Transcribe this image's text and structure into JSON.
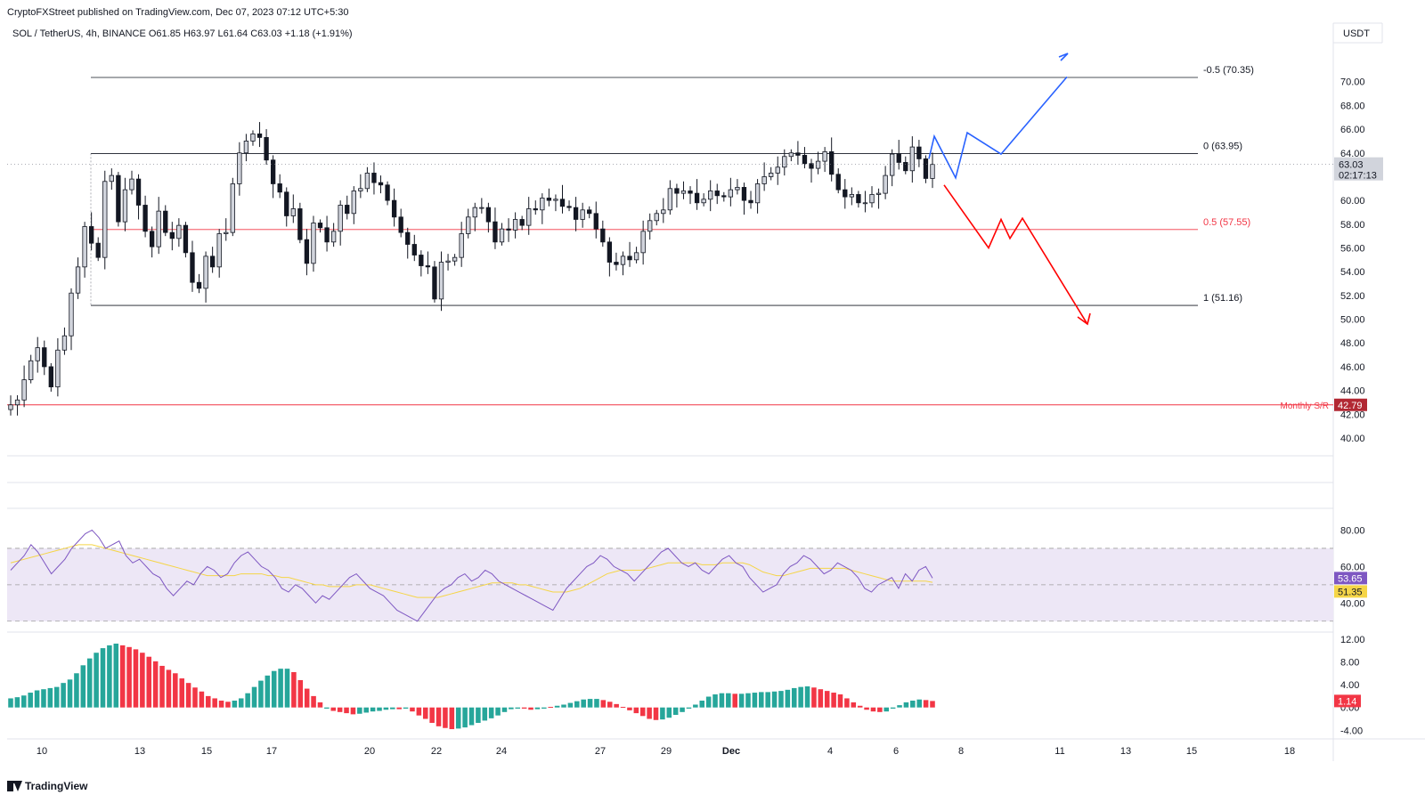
{
  "header": {
    "publisher_line": "CryptoFXStreet published on TradingView.com, Dec 07, 2023 07:12 UTC+5:30",
    "symbol_line": "SOL / TetherUS, 4h, BINANCE  O61.85  H63.97  L61.64  C63.03  +1.18 (+1.91%)"
  },
  "footer": {
    "brand": "TradingView"
  },
  "colors": {
    "bull": "#d1d4dc",
    "bear": "#131722",
    "fib_line": "#131722",
    "fib_mid": "#f23645",
    "support": "#f23645",
    "bullish_path": "#2962ff",
    "bearish_path": "#ff0000",
    "rsi": "#7e57c2",
    "rsi_ma": "#f5d547",
    "rsi_band": "#ede7f6",
    "hist_up": "#26a69a",
    "hist_down": "#f23645"
  },
  "chart_data": [
    {
      "type": "candlestick",
      "title": "SOL / TetherUS, 4h, BINANCE",
      "currency": "USDT",
      "ylim": [
        38.5,
        73.2
      ],
      "price_ticks": [
        "40.00",
        "42.00",
        "44.00",
        "46.00",
        "48.00",
        "50.00",
        "52.00",
        "54.00",
        "56.00",
        "58.00",
        "60.00",
        "62.00",
        "64.00",
        "66.00",
        "68.00",
        "70.00"
      ],
      "x_ticks": [
        "10",
        "13",
        "15",
        "17",
        "20",
        "22",
        "24",
        "27",
        "29",
        "Dec",
        "4",
        "6",
        "8",
        "11",
        "13",
        "15",
        "18"
      ],
      "closes": [
        42.79,
        43.2,
        44.9,
        46.5,
        47.6,
        46.0,
        44.3,
        47.4,
        48.6,
        52.2,
        54.4,
        57.8,
        56.4,
        55.2,
        61.6,
        62.1,
        58.2,
        60.9,
        61.8,
        59.6,
        57.4,
        56.1,
        59.1,
        57.3,
        56.8,
        57.9,
        55.6,
        53.1,
        52.6,
        55.3,
        54.4,
        57.2,
        57.3,
        61.4,
        64.0,
        65.0,
        65.6,
        65.3,
        63.4,
        61.4,
        60.7,
        58.7,
        59.3,
        56.7,
        54.7,
        58.1,
        57.7,
        56.5,
        57.4,
        59.6,
        58.9,
        60.8,
        61.0,
        62.3,
        61.5,
        61.3,
        60.0,
        58.6,
        57.3,
        56.3,
        55.4,
        54.5,
        54.4,
        51.7,
        54.8,
        54.9,
        55.2,
        57.2,
        58.6,
        59.4,
        59.4,
        58.2,
        56.5,
        57.6,
        57.5,
        58.4,
        57.9,
        59.3,
        59.2,
        60.2,
        60.0,
        60.1,
        59.5,
        59.4,
        58.4,
        59.2,
        58.9,
        57.6,
        56.5,
        54.8,
        54.6,
        55.3,
        55.0,
        55.6,
        57.4,
        58.3,
        58.9,
        59.2,
        61.0,
        60.6,
        60.8,
        60.6,
        59.8,
        60.1,
        60.8,
        60.4,
        60.3,
        60.9,
        61.1,
        60.0,
        59.8,
        61.4,
        62.0,
        62.3,
        62.8,
        63.7,
        64.0,
        63.8,
        63.1,
        62.7,
        63.3,
        64.1,
        62.2,
        60.9,
        60.3,
        60.5,
        59.8,
        59.8,
        60.5,
        60.6,
        62.1,
        63.9,
        63.2,
        62.5,
        64.5,
        63.5,
        61.85,
        63.03
      ],
      "horizontal_levels": [
        {
          "label": "-0.5 (70.35)",
          "value": 70.35
        },
        {
          "label": "0 (63.95)",
          "value": 63.95
        },
        {
          "label": "0.5 (57.55)",
          "value": 57.55
        },
        {
          "label": "1 (51.16)",
          "value": 51.16
        },
        {
          "label": "Monthly S/R",
          "value": 42.79
        }
      ],
      "price_badges": [
        {
          "value": "63.03",
          "countdown": "02:17:13"
        },
        {
          "value": "42.79"
        }
      ],
      "bullish_scenario": [
        [
          63.5,
          65.3
        ],
        [
          61.9,
          64.8
        ],
        [
          64.9,
          65.7
        ],
        [
          63.4,
          64.1
        ],
        [
          70.35,
          70.35
        ]
      ],
      "bearish_scenario": [
        [
          62.0,
          61.4
        ],
        [
          56.0,
          58.5
        ],
        [
          56.8,
          58.4
        ],
        [
          49.7,
          49.7
        ]
      ]
    },
    {
      "type": "line",
      "title": "RSI",
      "ylim": [
        25,
        90
      ],
      "y_ticks": [
        "40.00",
        "60.00",
        "80.00"
      ],
      "band": [
        30,
        70
      ],
      "midline": 50,
      "values": [
        58,
        62,
        66,
        72,
        68,
        62,
        56,
        60,
        64,
        70,
        74,
        78,
        80,
        76,
        70,
        72,
        74,
        66,
        62,
        64,
        60,
        56,
        54,
        48,
        44,
        48,
        52,
        50,
        56,
        60,
        58,
        54,
        56,
        62,
        66,
        68,
        64,
        60,
        58,
        54,
        48,
        46,
        50,
        48,
        44,
        40,
        44,
        42,
        46,
        50,
        54,
        56,
        52,
        48,
        46,
        44,
        40,
        36,
        34,
        32,
        30,
        35,
        40,
        45,
        48,
        50,
        54,
        56,
        52,
        54,
        58,
        56,
        52,
        50,
        48,
        46,
        44,
        42,
        40,
        38,
        36,
        42,
        48,
        52,
        56,
        60,
        62,
        66,
        64,
        60,
        58,
        56,
        52,
        56,
        60,
        64,
        68,
        70,
        66,
        62,
        60,
        62,
        58,
        56,
        60,
        64,
        66,
        62,
        60,
        54,
        50,
        46,
        48,
        50,
        56,
        60,
        62,
        66,
        64,
        60,
        56,
        58,
        62,
        60,
        58,
        54,
        48,
        46,
        50,
        52,
        54,
        48,
        56,
        52,
        58,
        60,
        53.65
      ],
      "ma_values": [
        62,
        63,
        64,
        65,
        66,
        67,
        68,
        69,
        70,
        71,
        72,
        72,
        72,
        71,
        70,
        69,
        68,
        67,
        66,
        65,
        64,
        63,
        62,
        61,
        60,
        59,
        58,
        57,
        56,
        55,
        55,
        55,
        55,
        55,
        56,
        56,
        56,
        56,
        55,
        55,
        54,
        54,
        53,
        52,
        51,
        50,
        50,
        49,
        49,
        49,
        49,
        50,
        50,
        50,
        49,
        48,
        47,
        46,
        45,
        44,
        43,
        43,
        43,
        43,
        44,
        45,
        46,
        47,
        48,
        49,
        50,
        51,
        51,
        51,
        51,
        50,
        50,
        49,
        48,
        47,
        46,
        46,
        46,
        47,
        48,
        50,
        52,
        54,
        56,
        57,
        58,
        58,
        58,
        58,
        59,
        60,
        61,
        62,
        62,
        62,
        62,
        62,
        61,
        61,
        61,
        62,
        62,
        62,
        62,
        61,
        59,
        57,
        56,
        55,
        55,
        56,
        57,
        58,
        59,
        59,
        59,
        59,
        59,
        59,
        58,
        57,
        56,
        55,
        54,
        53,
        52,
        52,
        52,
        52,
        52,
        52,
        51.35
      ],
      "current_badges": [
        "53.65",
        "51.35"
      ]
    },
    {
      "type": "histogram",
      "title": "MACD histogram",
      "ylim": [
        -5.2,
        12.6
      ],
      "y_ticks": [
        "-4.00",
        "0.00",
        "4.00",
        "8.00",
        "12.00"
      ],
      "current_badge": "1.14",
      "values": [
        1.6,
        1.8,
        2.1,
        2.6,
        3.0,
        3.2,
        3.4,
        3.6,
        4.3,
        4.9,
        6.0,
        7.4,
        8.6,
        9.6,
        10.4,
        10.9,
        11.2,
        10.9,
        10.6,
        10.2,
        9.6,
        8.9,
        8.1,
        7.3,
        6.6,
        6.0,
        5.1,
        4.3,
        3.5,
        2.8,
        2.0,
        1.6,
        1.2,
        1.0,
        1.2,
        1.6,
        2.5,
        3.6,
        4.7,
        5.6,
        6.4,
        6.8,
        6.8,
        6.2,
        4.8,
        3.3,
        2.0,
        0.9,
        -0.2,
        -0.6,
        -0.8,
        -1.0,
        -1.2,
        -1.1,
        -0.9,
        -0.7,
        -0.6,
        -0.4,
        -0.3,
        -0.3,
        -0.2,
        -0.7,
        -1.4,
        -2.0,
        -2.7,
        -3.3,
        -3.6,
        -3.8,
        -3.7,
        -3.5,
        -3.1,
        -2.7,
        -2.3,
        -1.9,
        -1.4,
        -0.8,
        -0.3,
        -0.2,
        -0.2,
        -0.4,
        -0.3,
        -0.2,
        0.1,
        0.3,
        0.5,
        0.8,
        1.1,
        1.4,
        1.5,
        1.5,
        1.3,
        1.0,
        0.6,
        0.1,
        -0.5,
        -1.0,
        -1.5,
        -2.0,
        -2.2,
        -2.1,
        -1.8,
        -1.3,
        -0.8,
        -0.2,
        0.5,
        1.2,
        1.9,
        2.3,
        2.5,
        2.5,
        2.4,
        2.4,
        2.5,
        2.6,
        2.7,
        2.7,
        2.8,
        2.9,
        3.1,
        3.4,
        3.6,
        3.7,
        3.5,
        3.2,
        2.9,
        2.6,
        2.3,
        1.6,
        0.9,
        0.3,
        -0.4,
        -0.7,
        -0.8,
        -0.7,
        -0.2,
        0.4,
        0.9,
        1.2,
        1.4,
        1.3,
        1.14
      ]
    }
  ]
}
